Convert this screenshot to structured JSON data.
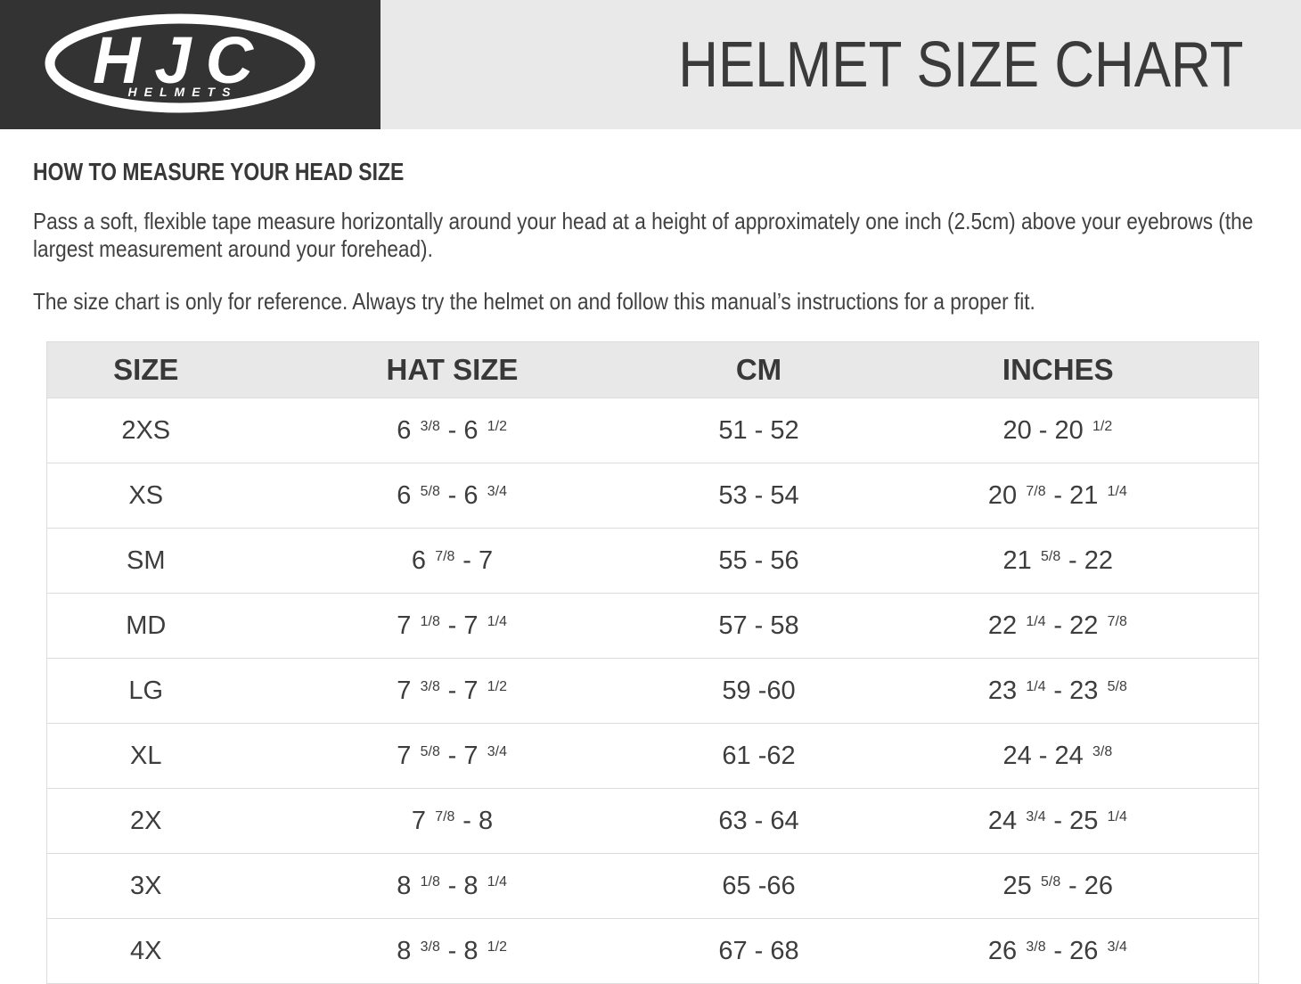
{
  "brand": {
    "logo_text": "HJC",
    "logo_subtext": "HELMETS"
  },
  "header": {
    "title": "HELMET SIZE CHART"
  },
  "intro": {
    "heading": "HOW TO MEASURE YOUR HEAD SIZE",
    "paragraph1": "Pass a soft, flexible tape measure horizontally around your head at a height of approximately one inch (2.5cm) above your eyebrows (the largest measurement around your forehead).",
    "paragraph2": "The size chart is only for reference. Always try the helmet on and follow this manual’s instructions for a proper fit."
  },
  "table": {
    "columns": [
      "SIZE",
      "HAT SIZE",
      "CM",
      "INCHES"
    ],
    "rows": [
      {
        "size": "2XS",
        "hat_size": "6 ^3/8^ - 6 ^1/2^",
        "cm": "51 - 52",
        "inches": "20 - 20 ^1/2^"
      },
      {
        "size": "XS",
        "hat_size": "6 ^5/8^ - 6 ^3/4^",
        "cm": "53 - 54",
        "inches": "20 ^7/8^ - 21 ^1/4^"
      },
      {
        "size": "SM",
        "hat_size": "6 ^7/8^ - 7",
        "cm": "55 - 56",
        "inches": "21 ^5/8^ - 22"
      },
      {
        "size": "MD",
        "hat_size": "7 ^1/8^ - 7 ^1/4^",
        "cm": "57 - 58",
        "inches": "22 ^1/4^ - 22 ^7/8^"
      },
      {
        "size": "LG",
        "hat_size": "7 ^3/8^ - 7 ^1/2^",
        "cm": "59 -60",
        "inches": "23 ^1/4^ - 23 ^5/8^"
      },
      {
        "size": "XL",
        "hat_size": "7 ^5/8^ - 7 ^3/4^",
        "cm": "61 -62",
        "inches": "24 - 24 ^3/8^"
      },
      {
        "size": "2X",
        "hat_size": "7 ^7/8^ - 8",
        "cm": "63 - 64",
        "inches": "24 ^3/4^ - 25 ^1/4^"
      },
      {
        "size": "3X",
        "hat_size": "8 ^1/8^ - 8 ^1/4^",
        "cm": "65 -66",
        "inches": "25 ^5/8^ - 26"
      },
      {
        "size": "4X",
        "hat_size": "8 ^3/8^ - 8 ^1/2^",
        "cm": "67 - 68",
        "inches": "26 ^3/8^ - 26 ^3/4^"
      }
    ]
  },
  "colors": {
    "banner_dark": "#333333",
    "banner_light": "#e9e9e9",
    "table_header_bg": "#e8e8e8",
    "row_border": "#dcdcdc",
    "text": "#3d3d3d"
  }
}
